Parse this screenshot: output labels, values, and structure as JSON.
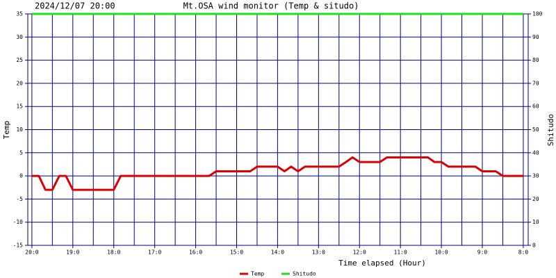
{
  "chart_data": {
    "type": "line",
    "title": "Mt.OSA wind monitor (Temp & situdo)",
    "subtitle": "2024/12/07 20:00",
    "x_label": "Time elapsed (Hour)",
    "y_label": "Temp",
    "y2_label": "Shitudo",
    "x": [
      0,
      0.17,
      0.33,
      0.5,
      0.67,
      0.83,
      1,
      2,
      2.17,
      4.33,
      4.5,
      5.33,
      5.5,
      6,
      6.17,
      6.33,
      6.5,
      6.67,
      7.5,
      7.67,
      7.83,
      8,
      8.5,
      8.67,
      9.67,
      9.83,
      10,
      10.17,
      10.83,
      11,
      11.33,
      11.5,
      12
    ],
    "series": [
      {
        "name": "Temp",
        "color": "#dd0000",
        "values": [
          0,
          0,
          -3,
          -3,
          0,
          0,
          -3,
          -3,
          0,
          0,
          1,
          1,
          2,
          2,
          1,
          2,
          1,
          2,
          2,
          3,
          4,
          3,
          3,
          4,
          4,
          3,
          3,
          2,
          2,
          1,
          1,
          0,
          0
        ]
      },
      {
        "name": "Shitudo",
        "color": "#22dd22",
        "axis": "y2",
        "values": [
          100,
          100,
          100,
          100,
          100,
          100,
          100,
          100,
          100,
          100,
          100,
          100,
          100,
          100,
          100,
          100,
          100,
          100,
          100,
          100,
          100,
          100,
          100,
          100,
          100,
          100,
          100,
          100,
          100,
          100,
          100,
          100,
          100
        ]
      }
    ],
    "xlim": [
      -0.1,
      12.12
    ],
    "xticks": [
      {
        "value": 0,
        "label": "20:0"
      },
      {
        "value": 1,
        "label": "19:0"
      },
      {
        "value": 2,
        "label": "18:0"
      },
      {
        "value": 3,
        "label": "17:0"
      },
      {
        "value": 4,
        "label": "16:0"
      },
      {
        "value": 5,
        "label": "15:0"
      },
      {
        "value": 6,
        "label": "14:0"
      },
      {
        "value": 7,
        "label": "13:0"
      },
      {
        "value": 8,
        "label": "12:0"
      },
      {
        "value": 9,
        "label": "11:0"
      },
      {
        "value": 10,
        "label": "10:0"
      },
      {
        "value": 11,
        "label": "9:0"
      },
      {
        "value": 12,
        "label": "8:0"
      }
    ],
    "ylim": [
      -15,
      35
    ],
    "yticks": [
      -15,
      -10,
      -5,
      0,
      5,
      10,
      15,
      20,
      25,
      30,
      35
    ],
    "y2lim": [
      0,
      100
    ],
    "y2ticks": [
      0,
      10,
      20,
      30,
      40,
      50,
      60,
      70,
      80,
      90,
      100
    ],
    "grid": true
  }
}
